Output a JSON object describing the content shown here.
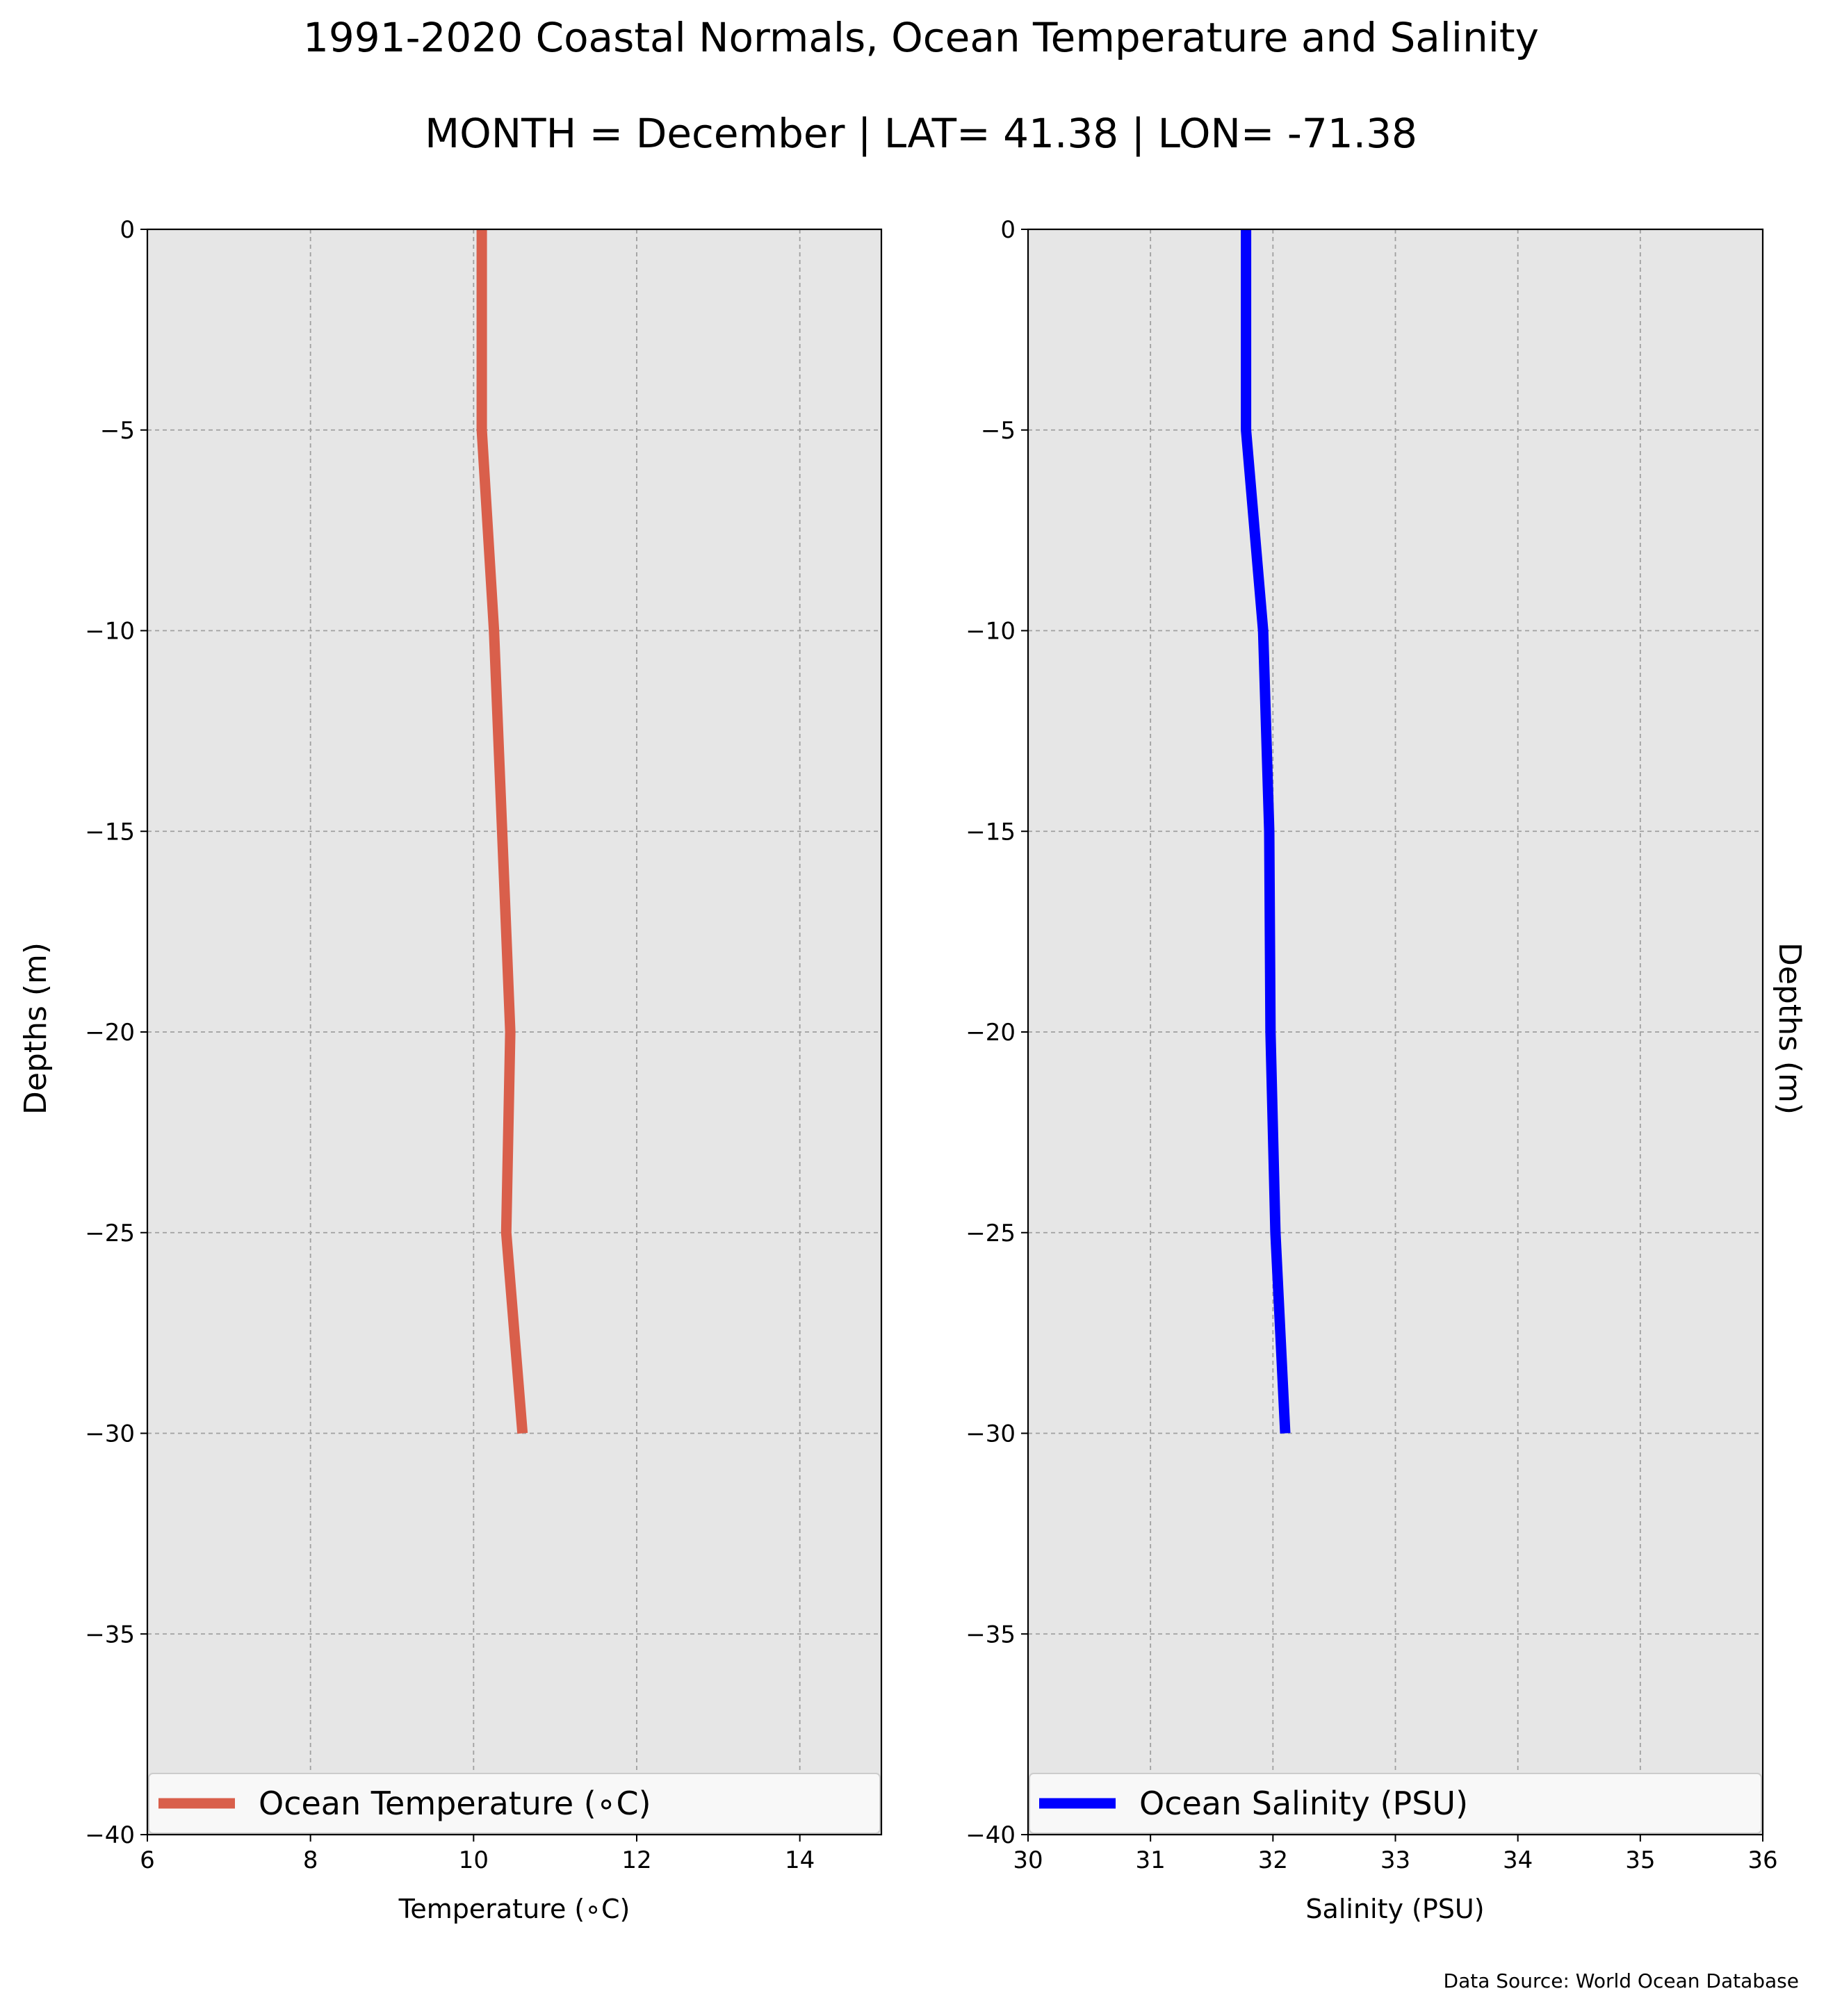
{
  "title_line1": "1991-2020 Coastal Normals, Ocean Temperature and Salinity",
  "title_line2": "MONTH = December | LAT= 41.38 | LON= -71.38",
  "source": "Data Source: World Ocean Database",
  "chart_data": [
    {
      "type": "line",
      "xlabel": "Temperature ($^\\circ$C)",
      "xlabel_text": "Temperature (∘C)",
      "ylabel": "Depths (m)",
      "xlim": [
        6,
        15
      ],
      "ylim": [
        -40,
        0
      ],
      "xticks": [
        6,
        8,
        10,
        12,
        14
      ],
      "xtick_labels": [
        "6",
        "8",
        "10",
        "12",
        "14"
      ],
      "yticks": [
        0,
        -5,
        -10,
        -15,
        -20,
        -25,
        -30,
        -35,
        -40
      ],
      "ytick_labels": [
        "0",
        "−5",
        "−10",
        "−15",
        "−20",
        "−25",
        "−30",
        "−35",
        "−40"
      ],
      "grid": true,
      "legend_position": "bottom",
      "background": "#e6e6e6",
      "series": [
        {
          "name": "Ocean Temperature (∘C)",
          "color": "#d95f4b",
          "x": [
            10.1,
            10.1,
            10.25,
            10.35,
            10.45,
            10.4,
            10.6
          ],
          "y": [
            0,
            -5,
            -10,
            -15,
            -20,
            -25,
            -30
          ]
        }
      ]
    },
    {
      "type": "line",
      "xlabel_text": "Salinity (PSU)",
      "ylabel": "Depths (m)",
      "xlim": [
        30,
        36
      ],
      "ylim": [
        -40,
        0
      ],
      "xticks": [
        30,
        31,
        32,
        33,
        34,
        35,
        36
      ],
      "xtick_labels": [
        "30",
        "31",
        "32",
        "33",
        "34",
        "35",
        "36"
      ],
      "yticks": [
        0,
        -5,
        -10,
        -15,
        -20,
        -25,
        -30,
        -35,
        -40
      ],
      "ytick_labels": [
        "0",
        "−5",
        "−10",
        "−15",
        "−20",
        "−25",
        "−30",
        "−35",
        "−40"
      ],
      "grid": true,
      "legend_position": "bottom",
      "background": "#e6e6e6",
      "series": [
        {
          "name": "Ocean Salinity (PSU)",
          "color": "#0000ff",
          "x": [
            31.78,
            31.78,
            31.92,
            31.97,
            31.98,
            32.02,
            32.1
          ],
          "y": [
            0,
            -5,
            -10,
            -15,
            -20,
            -25,
            -30
          ]
        }
      ]
    }
  ]
}
